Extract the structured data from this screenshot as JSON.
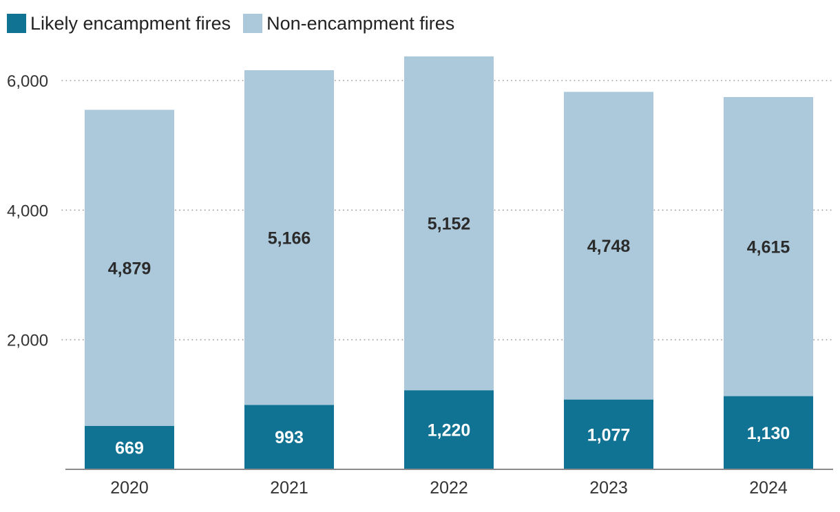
{
  "chart_data": {
    "type": "bar",
    "stacked": true,
    "title": "",
    "xlabel": "",
    "ylabel": "",
    "categories": [
      "2020",
      "2021",
      "2022",
      "2023",
      "2024"
    ],
    "series": [
      {
        "name": "Likely encampment fires",
        "values": [
          669,
          993,
          1220,
          1077,
          1130
        ],
        "labels": [
          "669",
          "993",
          "1,220",
          "1,077",
          "1,130"
        ],
        "color": "#107394"
      },
      {
        "name": "Non-encampment fires",
        "values": [
          4879,
          5166,
          5152,
          4748,
          4615
        ],
        "labels": [
          "4,879",
          "5,166",
          "5,152",
          "4,748",
          "4,615"
        ],
        "color": "#acc9dc"
      }
    ],
    "yticks": [
      2000,
      4000,
      6000
    ],
    "ytick_labels": [
      "2,000",
      "4,000",
      "6,000"
    ],
    "ylim": [
      0,
      6800
    ],
    "grid": "horizontal dotted",
    "legend_position": "top-left"
  }
}
